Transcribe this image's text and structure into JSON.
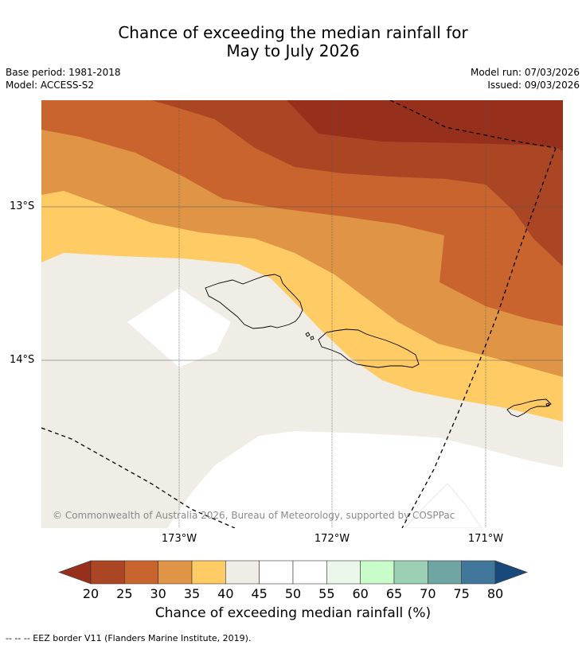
{
  "title_line1": "Chance of exceeding the median rainfall for",
  "title_line2": "May to July 2026",
  "base_period": "Base period: 1981-2018",
  "model": "Model: ACCESS-S2",
  "model_run": "Model run: 07/03/2026",
  "issued": "Issued: 09/03/2026",
  "latitudes": [
    "13°S",
    "14°S"
  ],
  "longitudes": [
    "173°W",
    "172°W",
    "171°W"
  ],
  "copyright": "© Commonwealth of Australia 2026, Bureau of Meteorology, supported by COSPPac",
  "colorbar": {
    "ticks": [
      "20",
      "25",
      "30",
      "35",
      "40",
      "45",
      "50",
      "55",
      "60",
      "65",
      "70",
      "75",
      "80"
    ],
    "colors": [
      "#aa4623",
      "#c9642e",
      "#e09445",
      "#fecb65",
      "#f0ece6",
      "#ffffff",
      "#ffffff",
      "#eaf7ea",
      "#c8fcc8",
      "#9bd0b4",
      "#6fa6a4",
      "#41779a"
    ],
    "low_extend_color": "#962f1c",
    "high_extend_color": "#17497a",
    "label": "Chance of exceeding median rainfall (%)"
  },
  "footnote": "-- -- -- EEZ border V11 (Flanders Marine Institute, 2019)."
}
